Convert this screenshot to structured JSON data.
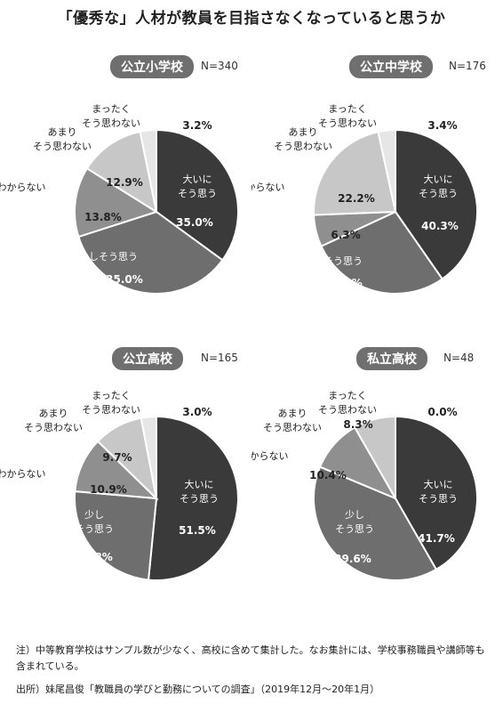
{
  "title": "「優秀な」人材が教員を目指さなくなっていると思うか",
  "colors": {
    "strongly_agree": "#3a3a3a",
    "somewhat_agree": "#6e6e6e",
    "dont_know": "#8f8f8f",
    "not_much": "#c7c7c7",
    "not_at_all": "#e6e6e6"
  },
  "chart_data": [
    {
      "type": "pie",
      "title": "公立小学校",
      "n_label": "N=340",
      "slices": [
        {
          "label": "大いに\nそう思う",
          "value": 35.0,
          "pct": "35.0%"
        },
        {
          "label": "少しそう思う",
          "value": 35.0,
          "pct": "35.0%"
        },
        {
          "label": "わからない",
          "value": 13.8,
          "pct": "13.8%"
        },
        {
          "label": "あまり\nそう思わない",
          "value": 12.9,
          "pct": "12.9%"
        },
        {
          "label": "まったく\nそう思わない",
          "value": 3.2,
          "pct": "3.2%"
        }
      ]
    },
    {
      "type": "pie",
      "title": "公立中学校",
      "n_label": "N=176",
      "slices": [
        {
          "label": "大いに\nそう思う",
          "value": 40.3,
          "pct": "40.3%"
        },
        {
          "label": "少しそう思う",
          "value": 27.8,
          "pct": "27.8%"
        },
        {
          "label": "わからない",
          "value": 6.3,
          "pct": "6.3%"
        },
        {
          "label": "あまり\nそう思わない",
          "value": 22.2,
          "pct": "22.2%"
        },
        {
          "label": "まったく\nそう思わない",
          "value": 3.4,
          "pct": "3.4%"
        }
      ]
    },
    {
      "type": "pie",
      "title": "公立高校",
      "n_label": "N=165",
      "slices": [
        {
          "label": "大いに\nそう思う",
          "value": 51.5,
          "pct": "51.5%"
        },
        {
          "label": "少し\nそう思う",
          "value": 24.8,
          "pct": "24.8%"
        },
        {
          "label": "わからない",
          "value": 10.9,
          "pct": "10.9%"
        },
        {
          "label": "あまり\nそう思わない",
          "value": 9.7,
          "pct": "9.7%"
        },
        {
          "label": "まったく\nそう思わない",
          "value": 3.0,
          "pct": "3.0%"
        }
      ]
    },
    {
      "type": "pie",
      "title": "私立高校",
      "n_label": "N=48",
      "slices": [
        {
          "label": "大いに\nそう思う",
          "value": 41.7,
          "pct": "41.7%"
        },
        {
          "label": "少し\nそう思う",
          "value": 39.6,
          "pct": "39.6%"
        },
        {
          "label": "わからない",
          "value": 10.4,
          "pct": "10.4%"
        },
        {
          "label": "あまり\nそう思わない",
          "value": 8.3,
          "pct": "8.3%"
        },
        {
          "label": "まったく\nそう思わない",
          "value": 0.0,
          "pct": "0.0%"
        }
      ]
    }
  ],
  "notes": {
    "note": "注）中等教育学校はサンプル数が少なく、高校に含めて集計した。なお集計には、学校事務職員や講師等も含まれている。",
    "source": "出所）妹尾昌俊「教職員の学びと勤務についての調査」（2019年12月〜20年1月）"
  }
}
